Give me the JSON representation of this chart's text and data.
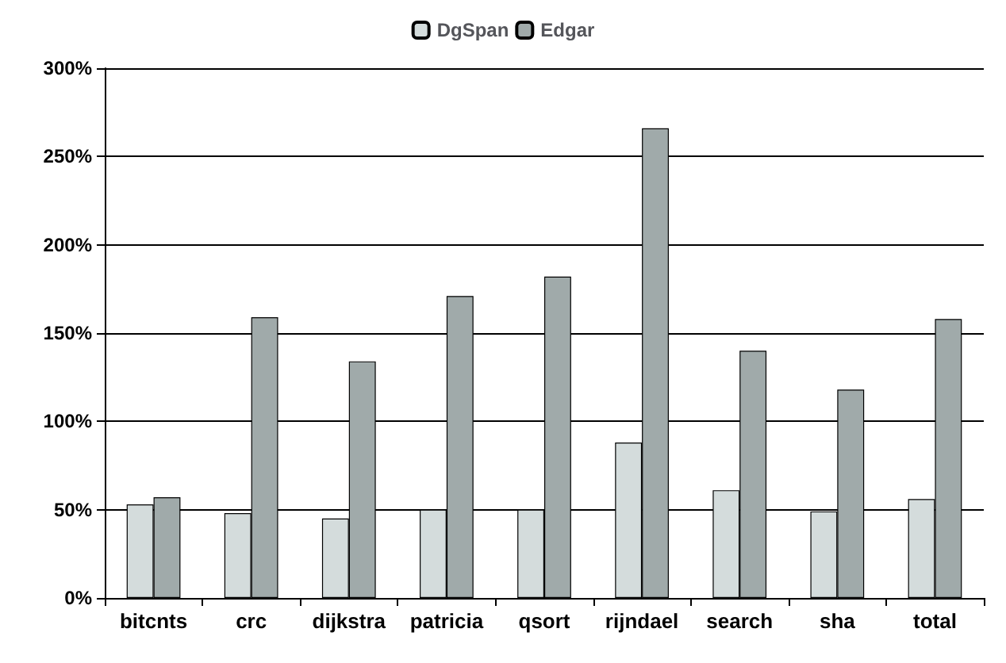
{
  "chart_data": {
    "type": "bar",
    "categories": [
      "bitcnts",
      "crc",
      "dijkstra",
      "patricia",
      "qsort",
      "rijndael",
      "search",
      "sha",
      "total"
    ],
    "series": [
      {
        "name": "DgSpan",
        "color": "#d4dcdc",
        "values": [
          53,
          48,
          45,
          50,
          50,
          88,
          61,
          49,
          56
        ]
      },
      {
        "name": "Edgar",
        "color": "#a0aaaa",
        "values": [
          57,
          159,
          134,
          171,
          182,
          266,
          140,
          118,
          158
        ]
      }
    ],
    "ylim": [
      0,
      300
    ],
    "yticks": [
      {
        "value": 0,
        "label": "0%"
      },
      {
        "value": 50,
        "label": "50%"
      },
      {
        "value": 100,
        "label": "100%"
      },
      {
        "value": 150,
        "label": "150%"
      },
      {
        "value": 200,
        "label": "200%"
      },
      {
        "value": 250,
        "label": "250%"
      },
      {
        "value": 300,
        "label": "300%"
      }
    ],
    "grid": "y",
    "legend": "top"
  }
}
